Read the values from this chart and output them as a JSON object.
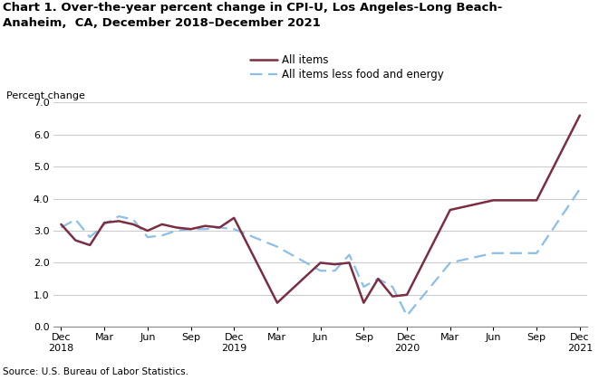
{
  "title_line1": "Chart 1. Over-the-year percent change in CPI-U, Los Angeles-Long Beach-",
  "title_line2": "Anaheim,  CA, December 2018–December 2021",
  "ylabel": "Percent change",
  "source": "Source: U.S. Bureau of Labor Statistics.",
  "ylim": [
    0.0,
    7.0
  ],
  "yticks": [
    0.0,
    1.0,
    2.0,
    3.0,
    4.0,
    5.0,
    6.0,
    7.0
  ],
  "all_items_color": "#7B2D42",
  "core_color": "#8BBFE8",
  "x_labels": [
    "Dec\n2018",
    "Mar",
    "Jun",
    "Sep",
    "Dec\n2019",
    "Mar",
    "Jun",
    "Sep",
    "Dec\n2020",
    "Mar",
    "Jun",
    "Sep",
    "Dec\n2021"
  ],
  "x_positions": [
    0,
    3,
    6,
    9,
    12,
    15,
    18,
    21,
    24,
    27,
    30,
    33,
    36
  ],
  "all_items_x": [
    0,
    1,
    2,
    3,
    4,
    5,
    6,
    7,
    8,
    9,
    10,
    11,
    12,
    15,
    18,
    19,
    20,
    21,
    22,
    23,
    24,
    27,
    30,
    33,
    36
  ],
  "all_items_y": [
    3.2,
    2.7,
    2.55,
    3.25,
    3.3,
    3.2,
    3.0,
    3.2,
    3.1,
    3.05,
    3.15,
    3.1,
    3.4,
    0.75,
    2.0,
    1.95,
    2.0,
    0.75,
    1.5,
    0.95,
    1.0,
    3.65,
    3.95,
    3.95,
    6.6
  ],
  "core_x": [
    0,
    1,
    2,
    3,
    4,
    5,
    6,
    7,
    8,
    9,
    10,
    11,
    12,
    15,
    18,
    19,
    20,
    21,
    22,
    23,
    24,
    27,
    30,
    33,
    36
  ],
  "core_y": [
    3.1,
    3.35,
    2.8,
    3.2,
    3.45,
    3.35,
    2.8,
    2.85,
    3.0,
    3.05,
    3.05,
    3.1,
    3.05,
    2.5,
    1.75,
    1.75,
    2.25,
    1.25,
    1.5,
    1.25,
    0.35,
    2.0,
    2.3,
    2.3,
    4.3
  ],
  "legend_all_items": "All items",
  "legend_core": "All items less food and energy",
  "background_color": "#ffffff",
  "grid_color": "#cccccc"
}
